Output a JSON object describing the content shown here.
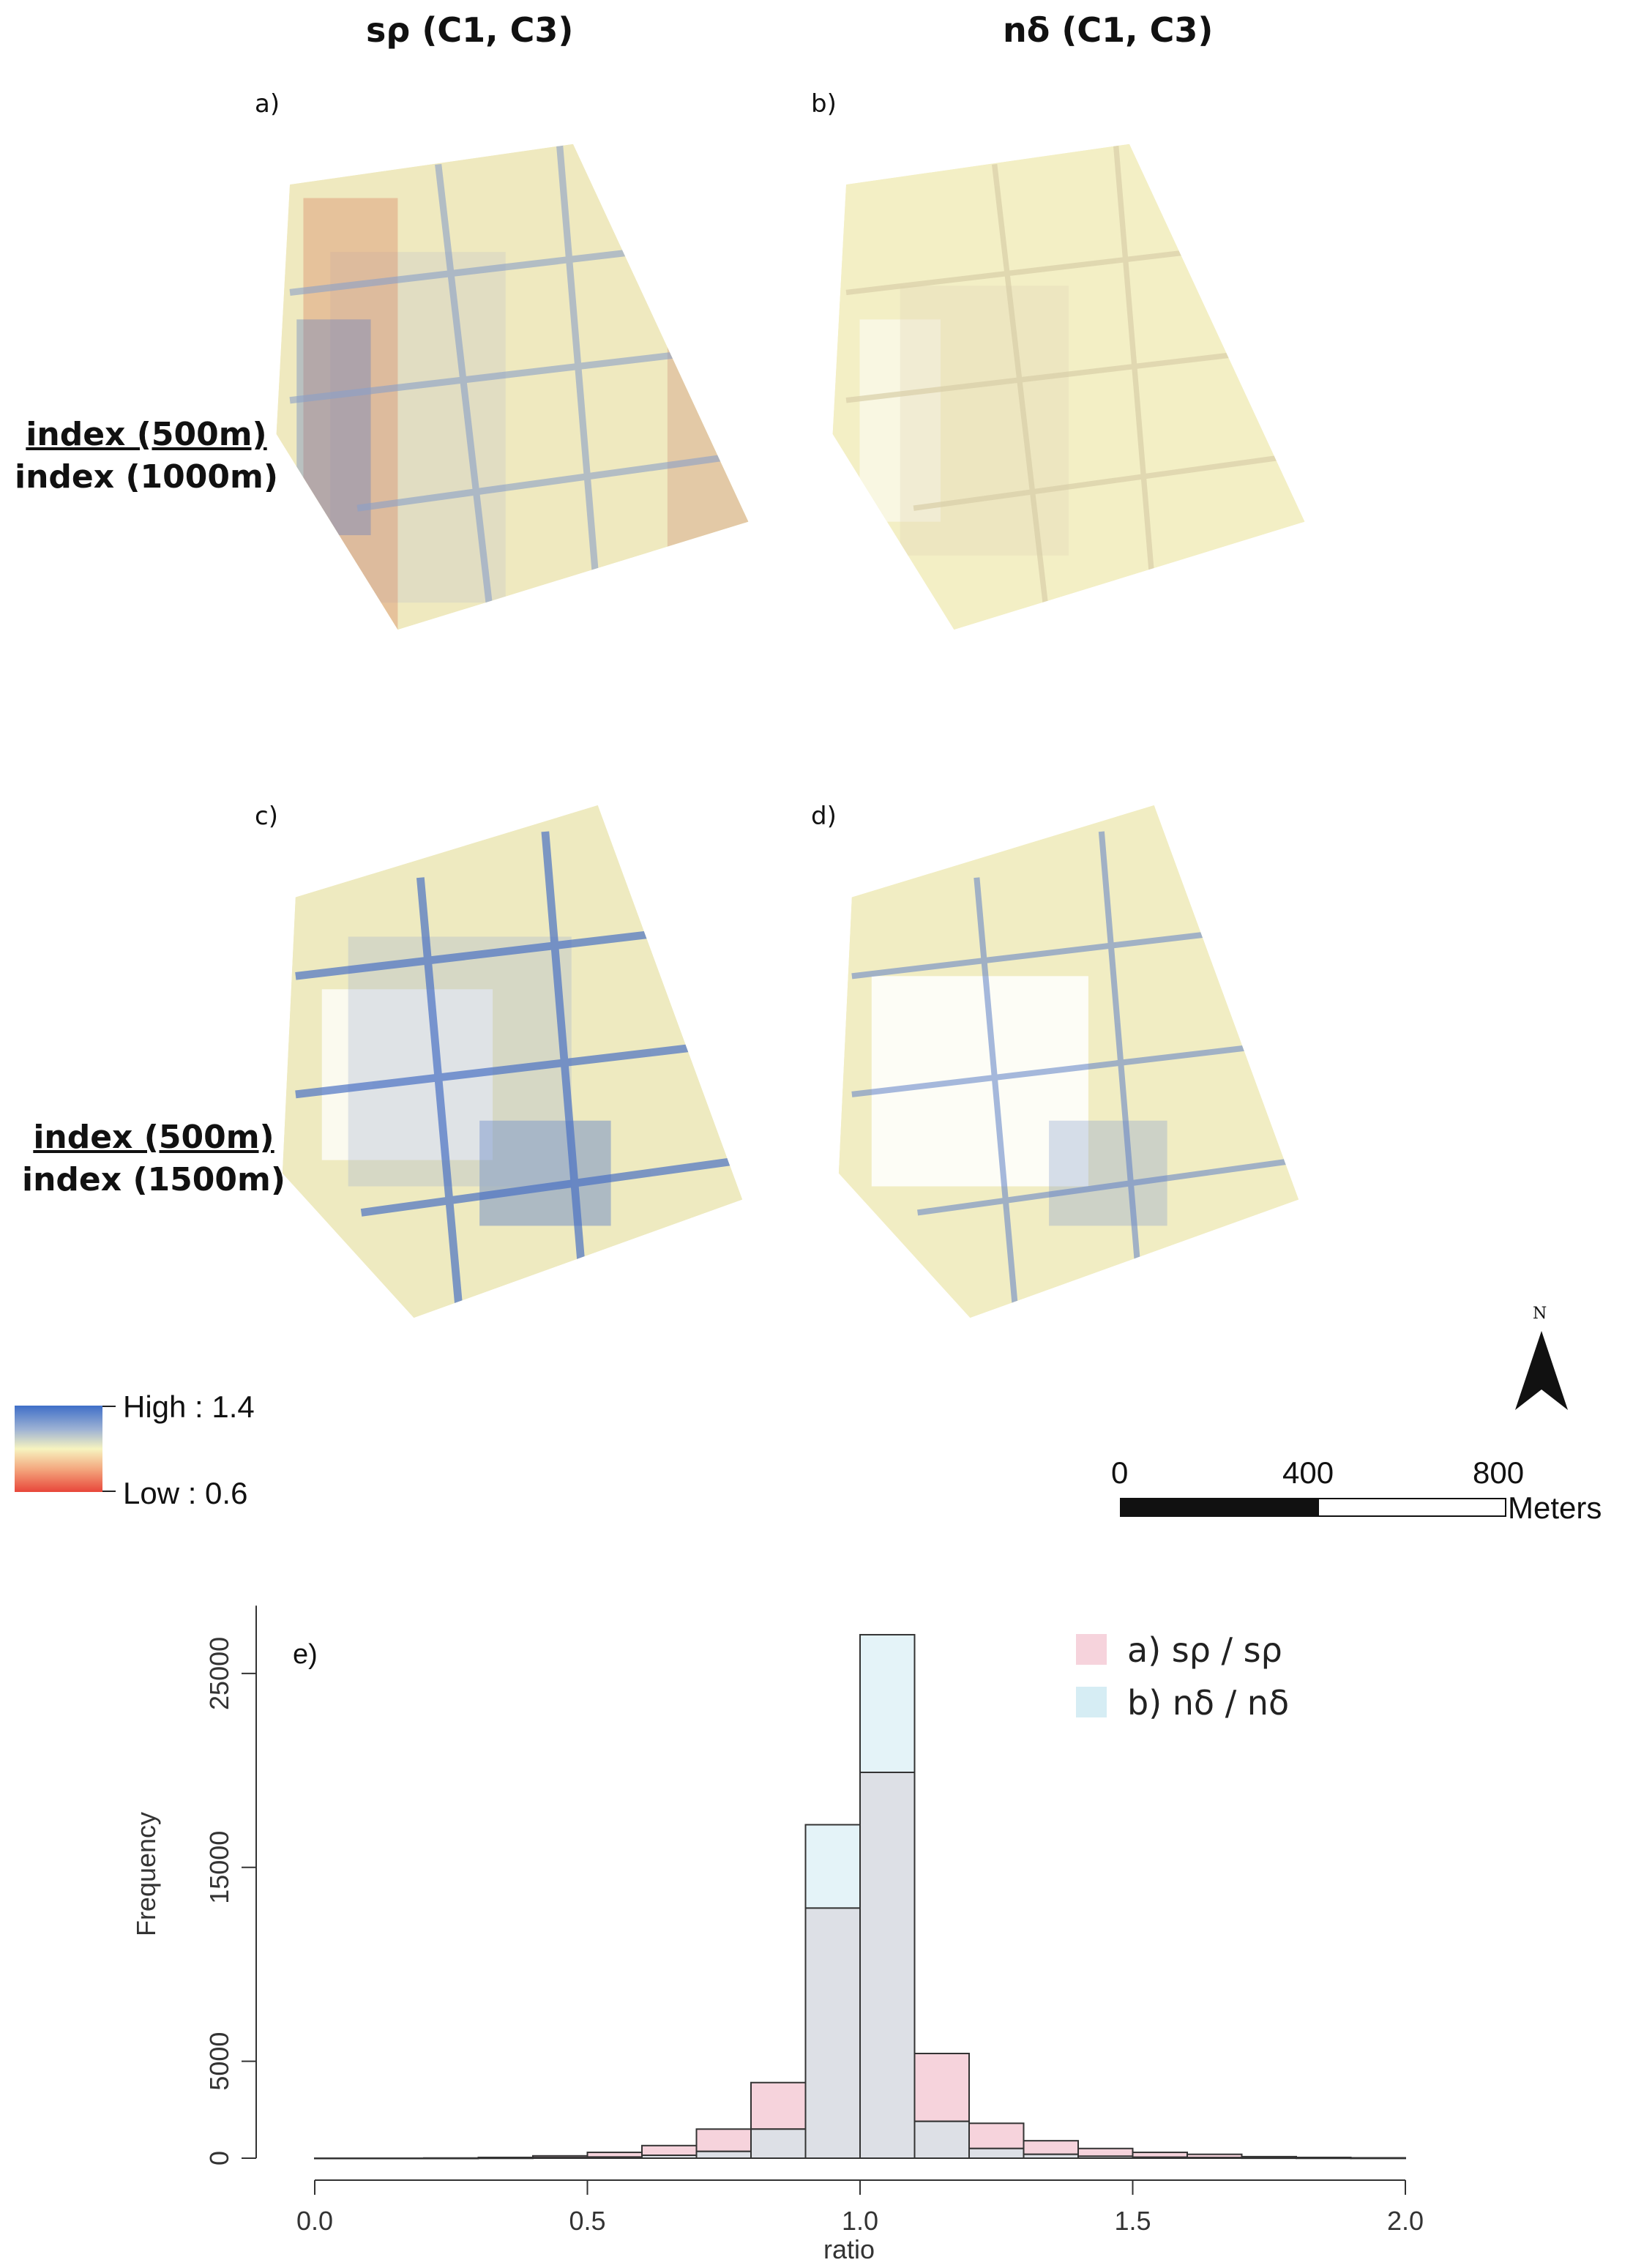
{
  "columns": {
    "left_title": "sρ (C1, C3)",
    "right_title": "nδ (C1, C3)"
  },
  "panels": {
    "a": "a)",
    "b": "b)",
    "c": "c)",
    "d": "d)",
    "e": "e)"
  },
  "rows": {
    "row1": {
      "numerator": "index (500m)",
      "denominator": "index (1000m)"
    },
    "row2": {
      "numerator": "index (500m)",
      "denominator": "index (1500m)"
    }
  },
  "legend": {
    "high": "High : 1.4",
    "low": "Low : 0.6",
    "colors": {
      "high": "#3f6fc8",
      "mid": "#f7f4c0",
      "low": "#e8463a"
    }
  },
  "scalebar": {
    "ticks": [
      "0",
      "400",
      "800"
    ],
    "units": "Meters"
  },
  "north_arrow": {
    "label": "N",
    "icon": "north-arrow-icon"
  },
  "chart_data": {
    "type": "bar",
    "subtype": "overlaid-histogram",
    "panel_label": "e)",
    "xlabel": "ratio",
    "ylabel": "Frequency",
    "xlim": [
      0,
      2
    ],
    "ylim": [
      0,
      29000
    ],
    "xticks": [
      0.0,
      0.5,
      1.0,
      1.5,
      2.0
    ],
    "xtick_labels": [
      "0.0",
      "0.5",
      "1.0",
      "1.5",
      "2.0"
    ],
    "yticks": [
      0,
      5000,
      15000,
      25000
    ],
    "ytick_labels": [
      "0",
      "5000",
      "15000",
      "25000"
    ],
    "bin_width": 0.1,
    "bin_starts": [
      0.0,
      0.1,
      0.2,
      0.3,
      0.4,
      0.5,
      0.6,
      0.7,
      0.8,
      0.9,
      1.0,
      1.1,
      1.2,
      1.3,
      1.4,
      1.5,
      1.6,
      1.7,
      1.8,
      1.9
    ],
    "series": [
      {
        "name": "a) sρ / sρ",
        "color": "#f6d3dc",
        "values": [
          0,
          0,
          10,
          40,
          120,
          300,
          650,
          1500,
          3900,
          12900,
          19900,
          5400,
          1800,
          900,
          500,
          300,
          200,
          80,
          40,
          20
        ]
      },
      {
        "name": "b) nδ / nδ",
        "color": "#d6edf4",
        "values": [
          0,
          0,
          0,
          10,
          30,
          60,
          150,
          350,
          1500,
          17200,
          27000,
          1900,
          500,
          200,
          100,
          50,
          30,
          15,
          10,
          5
        ]
      }
    ],
    "overlap_color": "#dde0e6",
    "legend_position": "top-right",
    "grid": false
  }
}
